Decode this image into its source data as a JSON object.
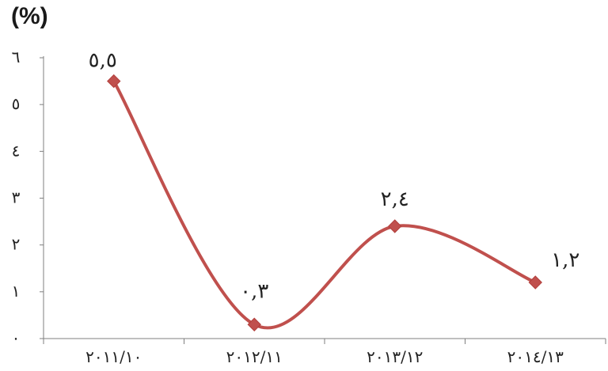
{
  "chart_data": {
    "type": "line",
    "title": "",
    "ylabel": "(%)",
    "xlabel": "",
    "categories": [
      "٢٠١١/١٠",
      "٢٠١٢/١١",
      "٢٠١٣/١٢",
      "٢٠١٤/١٣"
    ],
    "y_ticks": [
      "٠",
      "١",
      "٢",
      "٣",
      "٤",
      "٥",
      "٦"
    ],
    "ylim": [
      0,
      6
    ],
    "grid": false,
    "smooth": true,
    "series": [
      {
        "values": [
          5.5,
          0.3,
          2.4,
          1.2
        ],
        "data_labels": [
          "٥,٥",
          "٠,٣",
          "٢,٤",
          "١,٢"
        ],
        "color": "#c0504d",
        "marker": "diamond"
      }
    ]
  }
}
